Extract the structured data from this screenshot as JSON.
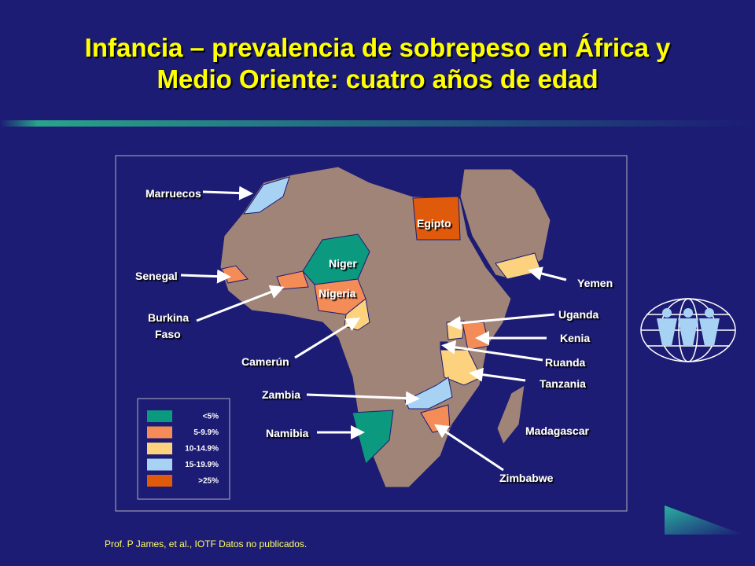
{
  "header": {
    "title": [
      "Infancia – prevalencia de sobrepeso en África  y",
      "Medio Oriente: cuatro años de edad"
    ]
  },
  "map": {
    "labels": [
      "Marruecos",
      "Egipto",
      "Niger",
      "Nigeria",
      "Senegal",
      "Burkina",
      "Faso",
      "Camerún",
      "Zambia",
      "Namibia",
      "Yemen",
      "Uganda",
      "Kenia",
      "Ruanda",
      "Tanzania",
      "Madagascar",
      "Zimbabwe"
    ]
  },
  "legend": {
    "items": [
      {
        "label": "<5%",
        "color": "#0b9a80"
      },
      {
        "label": "5-9.9%",
        "color": "#f48c58"
      },
      {
        "label": "10-14.9%",
        "color": "#fdd27e"
      },
      {
        "label": "15-19.9%",
        "color": "#a8d2f4"
      },
      {
        "label": ">25%",
        "color": "#e05a0c"
      }
    ]
  },
  "footer": {
    "source": "Prof. P James, et al., IOTF Datos no publicados."
  }
}
